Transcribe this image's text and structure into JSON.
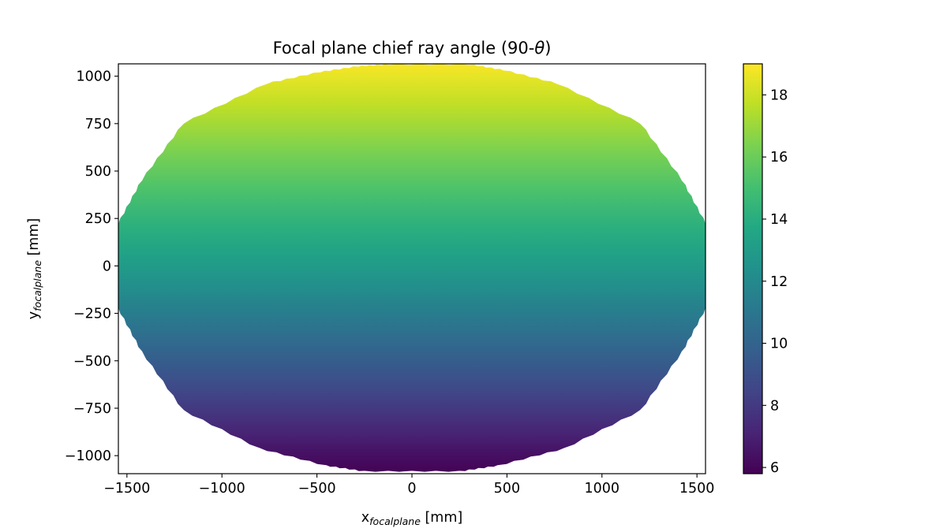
{
  "chart_data": {
    "type": "scatter",
    "title_prefix": "Focal plane chief ray angle (90-",
    "title_symbol": "θ",
    "title_suffix": ")",
    "xlabel": {
      "main": "x",
      "sub": "focalplane",
      "unit": " [mm]"
    },
    "ylabel": {
      "main": "y",
      "sub": "focalplane",
      "unit": " [mm]"
    },
    "xlim": [
      -1545,
      1545
    ],
    "ylim": [
      -1095,
      1065
    ],
    "xticks": [
      -1500,
      -1000,
      -500,
      0,
      500,
      1000,
      1500
    ],
    "xtick_labels": [
      "−1500",
      "−1000",
      "−500",
      "0",
      "500",
      "1000",
      "1500"
    ],
    "yticks": [
      -1000,
      -750,
      -500,
      -250,
      0,
      250,
      500,
      750,
      1000
    ],
    "ytick_labels": [
      "−1000",
      "−750",
      "−500",
      "−250",
      "0",
      "250",
      "500",
      "750",
      "1000"
    ],
    "colormap": "viridis",
    "colorbar": {
      "range": [
        5.8,
        19.0
      ],
      "ticks": [
        6,
        8,
        10,
        12,
        14,
        16,
        18
      ],
      "tick_labels": [
        "6",
        "8",
        "10",
        "12",
        "14",
        "16",
        "18"
      ]
    },
    "point_cloud": {
      "shape": "rounded octagonal focal-plane footprint of densely packed points",
      "x_extent": [
        -1545,
        1545
      ],
      "y_extent": [
        -1080,
        1060
      ],
      "value_at_top": 18.9,
      "value_at_center": 13.0,
      "value_at_bottom": 5.8,
      "value_trend": "increases from bottom to top, roughly independent of x"
    },
    "grid": false,
    "legend": "none"
  }
}
